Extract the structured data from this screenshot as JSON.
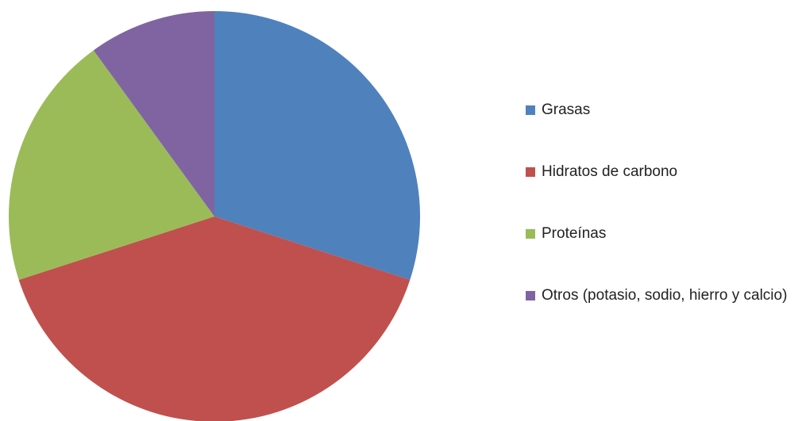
{
  "chart_data": {
    "type": "pie",
    "categories": [
      "Grasas",
      "Hidratos de carbono",
      "Proteínas",
      "Otros (potasio, sodio, hierro y calcio)"
    ],
    "values": [
      30,
      40,
      20,
      10
    ],
    "colors": [
      "#4f81bd",
      "#c0504d",
      "#9bbb59",
      "#8064a2"
    ],
    "legend": "right"
  }
}
